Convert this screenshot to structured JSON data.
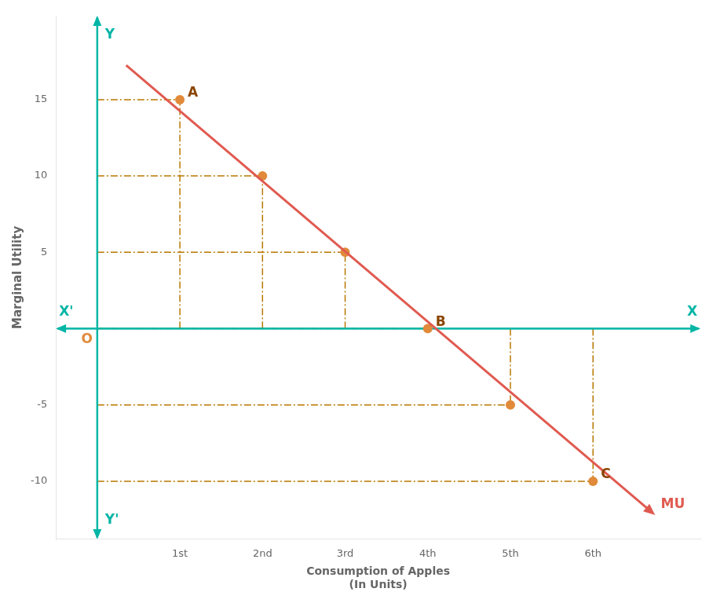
{
  "chart_data": {
    "type": "line",
    "xlabel": [
      "Consumption of Apples",
      "(In Units)"
    ],
    "ylabel": "Marginal Utility",
    "series": [
      {
        "name": "MU",
        "type": "line",
        "color": "#E05A50",
        "x": [
          0.35,
          6.65
        ],
        "values": [
          17.25,
          -11.75
        ]
      },
      {
        "type": "scatter",
        "color": "#E08A3A",
        "x": [
          1,
          2,
          3,
          4,
          5,
          6
        ],
        "values": [
          15,
          10,
          5,
          0,
          -5,
          -10
        ]
      }
    ],
    "annotations": [
      {
        "text": "A",
        "x": 1,
        "y": 15
      },
      {
        "text": "B",
        "x": 4,
        "y": 0
      },
      {
        "text": "C",
        "x": 6,
        "y": -10
      },
      {
        "text": "O",
        "x": 0,
        "y": 0
      },
      {
        "text": "X",
        "x": 7.3,
        "y": 0
      },
      {
        "text": "X'",
        "x": -0.5,
        "y": 0
      },
      {
        "text": "Y",
        "x": 0,
        "y": 20.5
      },
      {
        "text": "Y'",
        "x": 0,
        "y": -13.8
      }
    ],
    "xlim": [
      -0.5,
      7.3
    ],
    "ylim": [
      -13.8,
      20.5
    ],
    "xticks": [
      {
        "value": 1,
        "label": "1st"
      },
      {
        "value": 2,
        "label": "2nd"
      },
      {
        "value": 3,
        "label": "3rd"
      },
      {
        "value": 4,
        "label": "4th"
      },
      {
        "value": 5,
        "label": "5th"
      },
      {
        "value": 6,
        "label": "6th"
      }
    ],
    "yticks": [
      15,
      10,
      5,
      -5,
      -10
    ],
    "grid": false
  }
}
